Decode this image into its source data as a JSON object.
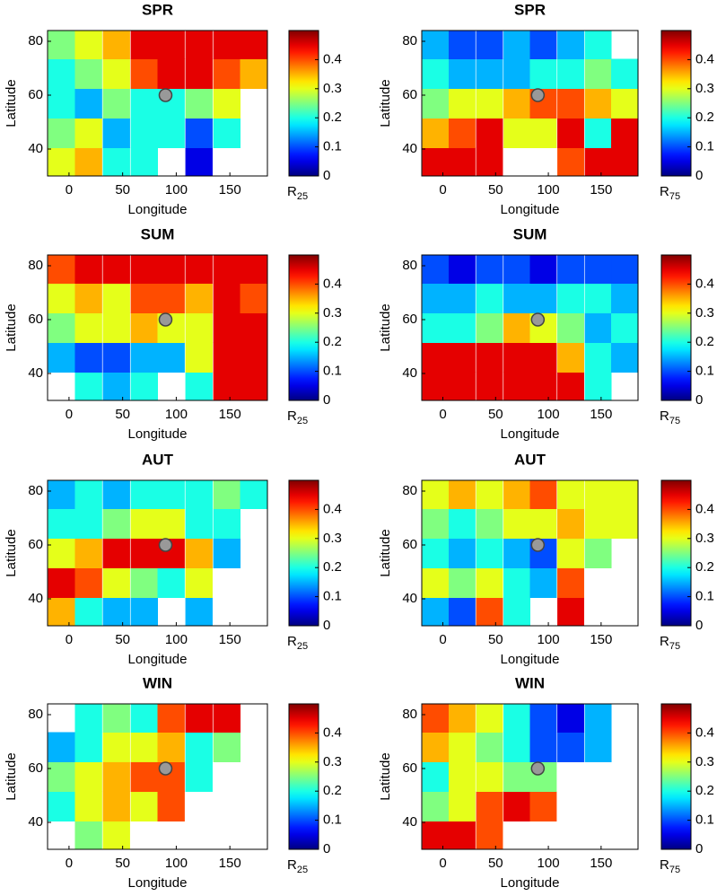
{
  "chart_data": [
    {
      "type": "heatmap",
      "title": "SPR",
      "xlabel": "Longitude",
      "ylabel": "Latitude",
      "xlim": [
        -20,
        185
      ],
      "ylim": [
        30,
        84
      ],
      "xticks": [
        0,
        50,
        100,
        150
      ],
      "yticks": [
        40,
        60,
        80
      ],
      "colormap": "jet",
      "clim": [
        0,
        0.5
      ],
      "cticks": [
        0,
        0.1,
        0.2,
        0.3,
        0.4
      ],
      "colorbar_label": "R",
      "colorbar_label_sub": "25",
      "marker_x": 90,
      "marker_y": 60,
      "x": [
        -7,
        18,
        44,
        70,
        95,
        121,
        147,
        172
      ],
      "y": [
        35,
        46,
        57,
        68,
        79
      ],
      "z": [
        [
          0.3,
          0.35,
          0.2,
          0.2,
          null,
          0.05,
          null,
          null
        ],
        [
          0.25,
          0.3,
          0.15,
          0.2,
          0.2,
          0.1,
          0.2,
          null
        ],
        [
          0.2,
          0.15,
          0.25,
          0.2,
          0.2,
          0.25,
          0.3,
          null
        ],
        [
          0.2,
          0.25,
          0.3,
          0.4,
          0.45,
          0.45,
          0.4,
          0.35
        ],
        [
          0.25,
          0.3,
          0.35,
          0.45,
          0.45,
          0.45,
          0.45,
          0.45
        ]
      ]
    },
    {
      "type": "heatmap",
      "title": "SPR",
      "xlabel": "Longitude",
      "ylabel": "Latitude",
      "xlim": [
        -20,
        185
      ],
      "ylim": [
        30,
        84
      ],
      "xticks": [
        0,
        50,
        100,
        150
      ],
      "yticks": [
        40,
        60,
        80
      ],
      "colormap": "jet",
      "clim": [
        0,
        0.5
      ],
      "cticks": [
        0,
        0.1,
        0.2,
        0.3,
        0.4
      ],
      "colorbar_label": "R",
      "colorbar_label_sub": "75",
      "marker_x": 90,
      "marker_y": 60,
      "x": [
        -7,
        18,
        44,
        70,
        95,
        121,
        147,
        172
      ],
      "y": [
        35,
        46,
        57,
        68,
        79
      ],
      "z": [
        [
          0.45,
          0.45,
          0.45,
          null,
          null,
          0.4,
          0.45,
          0.45
        ],
        [
          0.35,
          0.4,
          0.45,
          0.3,
          0.3,
          0.45,
          0.2,
          0.45
        ],
        [
          0.25,
          0.3,
          0.3,
          0.35,
          0.4,
          0.4,
          0.35,
          0.3
        ],
        [
          0.2,
          0.15,
          0.15,
          0.15,
          0.2,
          0.2,
          0.25,
          0.2
        ],
        [
          0.15,
          0.1,
          0.1,
          0.15,
          0.1,
          0.15,
          0.2,
          null
        ]
      ]
    },
    {
      "type": "heatmap",
      "title": "SUM",
      "xlabel": "Longitude",
      "ylabel": "Latitude",
      "xlim": [
        -20,
        185
      ],
      "ylim": [
        30,
        84
      ],
      "xticks": [
        0,
        50,
        100,
        150
      ],
      "yticks": [
        40,
        60,
        80
      ],
      "colormap": "jet",
      "clim": [
        0,
        0.5
      ],
      "cticks": [
        0,
        0.1,
        0.2,
        0.3,
        0.4
      ],
      "colorbar_label": "R",
      "colorbar_label_sub": "25",
      "marker_x": 90,
      "marker_y": 60,
      "x": [
        -7,
        18,
        44,
        70,
        95,
        121,
        147,
        172
      ],
      "y": [
        35,
        46,
        57,
        68,
        79
      ],
      "z": [
        [
          null,
          0.2,
          0.15,
          0.2,
          null,
          0.2,
          0.45,
          0.45
        ],
        [
          0.15,
          0.1,
          0.1,
          0.15,
          0.15,
          0.3,
          0.45,
          0.45
        ],
        [
          0.25,
          0.3,
          0.3,
          0.35,
          0.3,
          0.3,
          0.45,
          0.45
        ],
        [
          0.3,
          0.35,
          0.3,
          0.4,
          0.4,
          0.35,
          0.45,
          0.4
        ],
        [
          0.4,
          0.45,
          0.45,
          0.45,
          0.45,
          0.45,
          0.45,
          0.45
        ]
      ]
    },
    {
      "type": "heatmap",
      "title": "SUM",
      "xlabel": "Longitude",
      "ylabel": "Latitude",
      "xlim": [
        -20,
        185
      ],
      "ylim": [
        30,
        84
      ],
      "xticks": [
        0,
        50,
        100,
        150
      ],
      "yticks": [
        40,
        60,
        80
      ],
      "colormap": "jet",
      "clim": [
        0,
        0.5
      ],
      "cticks": [
        0,
        0.1,
        0.2,
        0.3,
        0.4
      ],
      "colorbar_label": "R",
      "colorbar_label_sub": "75",
      "marker_x": 90,
      "marker_y": 60,
      "x": [
        -7,
        18,
        44,
        70,
        95,
        121,
        147,
        172
      ],
      "y": [
        35,
        46,
        57,
        68,
        79
      ],
      "z": [
        [
          0.45,
          0.45,
          0.45,
          0.45,
          0.45,
          0.45,
          0.2,
          null
        ],
        [
          0.45,
          0.45,
          0.45,
          0.45,
          0.45,
          0.35,
          0.2,
          0.15
        ],
        [
          0.2,
          0.2,
          0.25,
          0.35,
          0.3,
          0.25,
          0.15,
          0.2
        ],
        [
          0.15,
          0.15,
          0.2,
          0.15,
          0.15,
          0.2,
          0.2,
          0.15
        ],
        [
          0.1,
          0.05,
          0.1,
          0.1,
          0.05,
          0.1,
          0.1,
          0.1
        ]
      ]
    },
    {
      "type": "heatmap",
      "title": "AUT",
      "xlabel": "Longitude",
      "ylabel": "Latitude",
      "xlim": [
        -20,
        185
      ],
      "ylim": [
        30,
        84
      ],
      "xticks": [
        0,
        50,
        100,
        150
      ],
      "yticks": [
        40,
        60,
        80
      ],
      "colormap": "jet",
      "clim": [
        0,
        0.5
      ],
      "cticks": [
        0,
        0.1,
        0.2,
        0.3,
        0.4
      ],
      "colorbar_label": "R",
      "colorbar_label_sub": "25",
      "marker_x": 90,
      "marker_y": 60,
      "x": [
        -7,
        18,
        44,
        70,
        95,
        121,
        147,
        172
      ],
      "y": [
        35,
        46,
        57,
        68,
        79
      ],
      "z": [
        [
          0.35,
          0.2,
          0.15,
          0.15,
          null,
          0.15,
          null,
          null
        ],
        [
          0.45,
          0.4,
          0.3,
          0.25,
          0.2,
          0.3,
          null,
          null
        ],
        [
          0.3,
          0.35,
          0.45,
          0.45,
          0.45,
          0.35,
          0.15,
          null
        ],
        [
          0.2,
          0.2,
          0.25,
          0.3,
          0.3,
          0.2,
          0.2,
          null
        ],
        [
          0.15,
          0.2,
          0.15,
          0.2,
          0.2,
          0.2,
          0.25,
          0.2
        ]
      ]
    },
    {
      "type": "heatmap",
      "title": "AUT",
      "xlabel": "Longitude",
      "ylabel": "Latitude",
      "xlim": [
        -20,
        185
      ],
      "ylim": [
        30,
        84
      ],
      "xticks": [
        0,
        50,
        100,
        150
      ],
      "yticks": [
        40,
        60,
        80
      ],
      "colormap": "jet",
      "clim": [
        0,
        0.5
      ],
      "cticks": [
        0,
        0.1,
        0.2,
        0.3,
        0.4
      ],
      "colorbar_label": "R",
      "colorbar_label_sub": "75",
      "marker_x": 90,
      "marker_y": 60,
      "x": [
        -7,
        18,
        44,
        70,
        95,
        121,
        147,
        172
      ],
      "y": [
        35,
        46,
        57,
        68,
        79
      ],
      "z": [
        [
          0.15,
          0.1,
          0.4,
          0.2,
          null,
          0.45,
          null,
          null
        ],
        [
          0.3,
          0.25,
          0.3,
          0.2,
          0.15,
          0.4,
          null,
          null
        ],
        [
          0.2,
          0.15,
          0.2,
          0.15,
          0.1,
          0.3,
          0.25,
          null
        ],
        [
          0.25,
          0.2,
          0.25,
          0.3,
          0.3,
          0.35,
          0.3,
          0.3
        ],
        [
          0.3,
          0.35,
          0.3,
          0.35,
          0.4,
          0.3,
          0.3,
          0.3
        ]
      ]
    },
    {
      "type": "heatmap",
      "title": "WIN",
      "xlabel": "Longitude",
      "ylabel": "Latitude",
      "xlim": [
        -20,
        185
      ],
      "ylim": [
        30,
        84
      ],
      "xticks": [
        0,
        50,
        100,
        150
      ],
      "yticks": [
        40,
        60,
        80
      ],
      "colormap": "jet",
      "clim": [
        0,
        0.5
      ],
      "cticks": [
        0,
        0.1,
        0.2,
        0.3,
        0.4
      ],
      "colorbar_label": "R",
      "colorbar_label_sub": "25",
      "marker_x": 90,
      "marker_y": 60,
      "x": [
        -7,
        18,
        44,
        70,
        95,
        121,
        147,
        172
      ],
      "y": [
        35,
        46,
        57,
        68,
        79
      ],
      "z": [
        [
          null,
          0.25,
          0.3,
          null,
          null,
          null,
          null,
          null
        ],
        [
          0.2,
          0.3,
          0.35,
          0.3,
          0.4,
          null,
          null,
          null
        ],
        [
          0.25,
          0.3,
          0.35,
          0.4,
          0.4,
          0.2,
          null,
          null
        ],
        [
          0.15,
          0.2,
          0.3,
          0.3,
          0.35,
          0.2,
          0.25,
          null
        ],
        [
          null,
          0.2,
          0.25,
          0.2,
          0.4,
          0.45,
          0.45,
          null
        ]
      ]
    },
    {
      "type": "heatmap",
      "title": "WIN",
      "xlabel": "Longitude",
      "ylabel": "Latitude",
      "xlim": [
        -20,
        185
      ],
      "ylim": [
        30,
        84
      ],
      "xticks": [
        0,
        50,
        100,
        150
      ],
      "yticks": [
        40,
        60,
        80
      ],
      "colormap": "jet",
      "clim": [
        0,
        0.5
      ],
      "cticks": [
        0,
        0.1,
        0.2,
        0.3,
        0.4
      ],
      "colorbar_label": "R",
      "colorbar_label_sub": "75",
      "marker_x": 90,
      "marker_y": 60,
      "x": [
        -7,
        18,
        44,
        70,
        95,
        121,
        147,
        172
      ],
      "y": [
        35,
        46,
        57,
        68,
        79
      ],
      "z": [
        [
          0.45,
          0.45,
          0.4,
          null,
          null,
          null,
          null,
          null
        ],
        [
          0.25,
          0.3,
          0.4,
          0.45,
          0.4,
          null,
          null,
          null
        ],
        [
          0.2,
          0.3,
          0.3,
          0.25,
          0.25,
          null,
          null,
          null
        ],
        [
          0.35,
          0.3,
          0.25,
          0.2,
          0.1,
          0.1,
          0.15,
          null
        ],
        [
          0.4,
          0.35,
          0.3,
          0.2,
          0.1,
          0.05,
          0.15,
          null
        ]
      ]
    }
  ]
}
